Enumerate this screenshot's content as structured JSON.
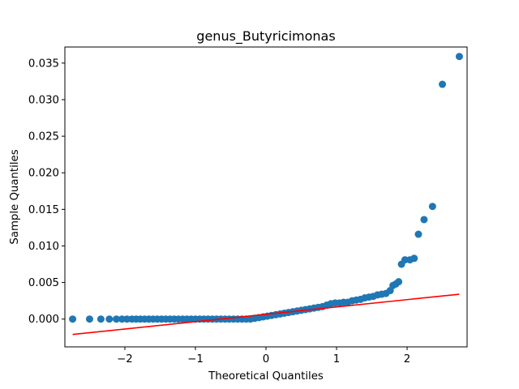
{
  "chart_data": {
    "type": "scatter",
    "title": "genus_Butyricimonas",
    "xlabel": "Theoretical Quantiles",
    "ylabel": "Sample Quantiles",
    "xlim": [
      -2.85,
      2.85
    ],
    "ylim": [
      -0.0038,
      0.0372
    ],
    "xticks": [
      -2,
      -1,
      0,
      1,
      2
    ],
    "xtick_labels": [
      "−2",
      "−1",
      "0",
      "1",
      "2"
    ],
    "yticks": [
      0.0,
      0.005,
      0.01,
      0.015,
      0.02,
      0.025,
      0.03,
      0.035
    ],
    "ytick_labels": [
      "0.000",
      "0.005",
      "0.010",
      "0.015",
      "0.020",
      "0.025",
      "0.030",
      "0.035"
    ],
    "grid": false,
    "colors": {
      "points": "#1f77b4",
      "line": "#ff0000",
      "axes": "#000000"
    },
    "reference_line": {
      "x": [
        -2.74,
        2.74
      ],
      "y": [
        -0.0021,
        0.0034
      ]
    },
    "series": [
      {
        "points": [
          [
            -2.74,
            0.0
          ],
          [
            -2.5,
            0.0
          ],
          [
            -2.34,
            0.0
          ],
          [
            -2.22,
            0.0
          ],
          [
            -2.12,
            0.0
          ],
          [
            -2.04,
            0.0
          ],
          [
            -1.97,
            0.0
          ],
          [
            -1.9,
            0.0
          ],
          [
            -1.84,
            0.0
          ],
          [
            -1.78,
            0.0
          ],
          [
            -1.72,
            0.0
          ],
          [
            -1.66,
            0.0
          ],
          [
            -1.6,
            0.0
          ],
          [
            -1.54,
            0.0
          ],
          [
            -1.48,
            0.0
          ],
          [
            -1.42,
            0.0
          ],
          [
            -1.36,
            0.0
          ],
          [
            -1.3,
            0.0
          ],
          [
            -1.24,
            0.0
          ],
          [
            -1.18,
            0.0
          ],
          [
            -1.12,
            0.0
          ],
          [
            -1.06,
            0.0
          ],
          [
            -1.0,
            0.0
          ],
          [
            -0.94,
            0.0
          ],
          [
            -0.88,
            0.0
          ],
          [
            -0.82,
            0.0
          ],
          [
            -0.76,
            0.0
          ],
          [
            -0.7,
            0.0
          ],
          [
            -0.64,
            0.0
          ],
          [
            -0.58,
            0.0
          ],
          [
            -0.52,
            0.0
          ],
          [
            -0.46,
            0.0
          ],
          [
            -0.4,
            0.0
          ],
          [
            -0.34,
            0.0
          ],
          [
            -0.28,
            0.0
          ],
          [
            -0.22,
            0.0
          ],
          [
            -0.16,
            0.0001
          ],
          [
            -0.1,
            0.0002
          ],
          [
            -0.04,
            0.0003
          ],
          [
            0.02,
            0.0004
          ],
          [
            0.08,
            0.0005
          ],
          [
            0.14,
            0.0006
          ],
          [
            0.2,
            0.0007
          ],
          [
            0.26,
            0.0008
          ],
          [
            0.32,
            0.0009
          ],
          [
            0.38,
            0.001
          ],
          [
            0.44,
            0.0011
          ],
          [
            0.5,
            0.0012
          ],
          [
            0.56,
            0.0013
          ],
          [
            0.62,
            0.0014
          ],
          [
            0.68,
            0.0015
          ],
          [
            0.74,
            0.0016
          ],
          [
            0.8,
            0.0017
          ],
          [
            0.86,
            0.0019
          ],
          [
            0.92,
            0.0021
          ],
          [
            0.98,
            0.0022
          ],
          [
            1.04,
            0.0022
          ],
          [
            1.1,
            0.0023
          ],
          [
            1.16,
            0.0023
          ],
          [
            1.22,
            0.0025
          ],
          [
            1.28,
            0.0026
          ],
          [
            1.34,
            0.0027
          ],
          [
            1.4,
            0.0029
          ],
          [
            1.46,
            0.003
          ],
          [
            1.52,
            0.0031
          ],
          [
            1.58,
            0.0033
          ],
          [
            1.64,
            0.0034
          ],
          [
            1.7,
            0.0035
          ],
          [
            1.76,
            0.0039
          ],
          [
            1.8,
            0.0046
          ],
          [
            1.84,
            0.0048
          ],
          [
            1.88,
            0.0051
          ],
          [
            1.92,
            0.0075
          ],
          [
            1.97,
            0.0081
          ],
          [
            2.04,
            0.0081
          ],
          [
            2.1,
            0.0083
          ],
          [
            2.16,
            0.0116
          ],
          [
            2.24,
            0.0136
          ],
          [
            2.36,
            0.0154
          ],
          [
            2.5,
            0.0321
          ],
          [
            2.74,
            0.0359
          ]
        ]
      }
    ]
  }
}
